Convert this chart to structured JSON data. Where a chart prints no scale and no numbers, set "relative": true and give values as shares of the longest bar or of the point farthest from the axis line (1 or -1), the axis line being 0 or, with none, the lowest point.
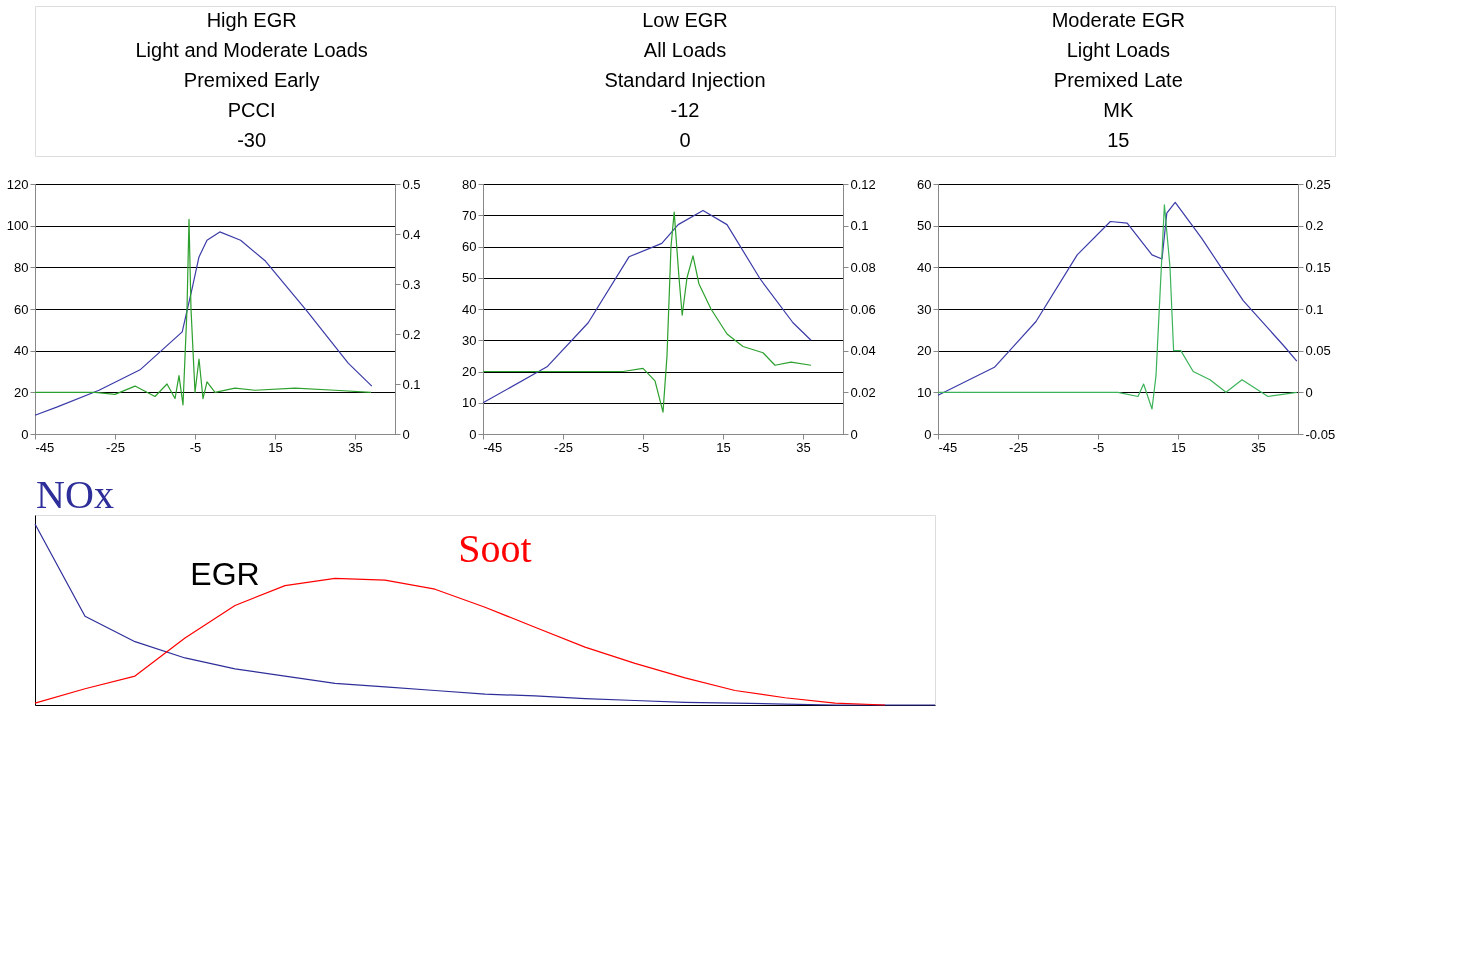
{
  "chart_data": [
    {
      "type": "other",
      "annotations": [
        "High EGR",
        "Low EGR",
        "Moderate EGR",
        "Light and Moderate Loads",
        "All Loads",
        "Light Loads",
        "Premixed Early",
        "Standard Injection",
        "Premixed Late",
        "PCCI",
        "-12",
        "MK",
        "-30",
        "0",
        "15"
      ]
    },
    {
      "type": "line",
      "xlim": [
        -45,
        45
      ],
      "xticks": [
        -45,
        -25,
        -5,
        15,
        35
      ],
      "ylim": [
        0,
        120
      ],
      "yticks": [
        0,
        20,
        40,
        60,
        80,
        100,
        120
      ],
      "y2lim": [
        0,
        0.5
      ],
      "y2ticks": [
        0,
        0.1,
        0.2,
        0.3,
        0.4,
        0.5
      ],
      "grid": "y",
      "series": [
        {
          "color": "#3b3ba8",
          "x": [
            -45,
            -39.4,
            -29,
            -18.6,
            -8.2,
            -5.7,
            -4,
            -2,
            1.2,
            6.4,
            12.6,
            23,
            33.3,
            39.2
          ],
          "values": [
            9,
            13,
            21,
            31,
            49,
            70,
            85,
            93,
            97,
            93,
            83,
            59,
            34,
            23
          ]
        },
        {
          "color": "#2ca02c",
          "x": [
            -45,
            -30,
            -25,
            -20,
            -15,
            -12,
            -10,
            -9,
            -8,
            -7,
            -6.5,
            -6,
            -5,
            -4,
            -3,
            -2,
            0,
            5,
            10,
            20,
            30,
            39
          ],
          "values": [
            20,
            20,
            19,
            23,
            18,
            24,
            17,
            28,
            14,
            60,
            103,
            60,
            20,
            36,
            17,
            25,
            20,
            22,
            21,
            22,
            21,
            20
          ]
        }
      ]
    },
    {
      "type": "line",
      "xlim": [
        -45,
        45
      ],
      "xticks": [
        -45,
        -25,
        -5,
        15,
        35
      ],
      "ylim": [
        0,
        80
      ],
      "yticks": [
        0,
        10,
        20,
        30,
        40,
        50,
        60,
        70,
        80
      ],
      "y2lim": [
        0,
        0.12
      ],
      "y2ticks": [
        0,
        0.02,
        0.04,
        0.06,
        0.08,
        0.1,
        0.12
      ],
      "grid": "y",
      "series": [
        {
          "color": "#3b3ba8",
          "x": [
            -45,
            -29,
            -18.7,
            -8.5,
            -0.3,
            3.8,
            10,
            16,
            24.3,
            32.5,
            37
          ],
          "values": [
            10,
            21.5,
            35.6,
            56.7,
            61,
            67,
            71.5,
            67,
            49.6,
            35.6,
            30
          ]
        },
        {
          "color": "#2ca02c",
          "x": [
            -45,
            -10,
            -5,
            -2,
            0,
            1,
            2,
            2.8,
            4,
            4.8,
            6,
            7.5,
            9,
            12,
            16,
            20,
            25,
            28,
            32,
            37
          ],
          "values": [
            20,
            20,
            21,
            17,
            7,
            25,
            60,
            71,
            50,
            38,
            50,
            57,
            48,
            40,
            32,
            28,
            26,
            22,
            23,
            22
          ]
        }
      ]
    },
    {
      "type": "line",
      "xlim": [
        -45,
        45
      ],
      "xticks": [
        -45,
        -25,
        -5,
        15,
        35
      ],
      "ylim": [
        0,
        60
      ],
      "yticks": [
        0,
        10,
        20,
        30,
        40,
        50,
        60
      ],
      "y2lim": [
        -0.05,
        0.25
      ],
      "y2ticks": [
        -0.05,
        0,
        0.05,
        0.1,
        0.15,
        0.2,
        0.25
      ],
      "grid": "y",
      "series": [
        {
          "color": "#3b3ba8",
          "x": [
            -45,
            -30.9,
            -20.5,
            -10.2,
            -1.9,
            2.3,
            8.5,
            11,
            12.2,
            14.3,
            20.9,
            31.3,
            41.6,
            44.7
          ],
          "values": [
            9.3,
            16,
            27,
            43,
            51,
            50.6,
            43,
            42,
            53,
            55.6,
            47,
            32,
            21,
            17.5
          ]
        },
        {
          "color": "#3cb35a",
          "x": [
            -45,
            0,
            5,
            6.4,
            8.5,
            9.5,
            11.6,
            13,
            13.9,
            15.7,
            18.8,
            23,
            27,
            31,
            37.5,
            44.7
          ],
          "values": [
            10,
            10,
            9,
            12,
            6,
            14,
            55,
            40,
            20,
            20,
            15,
            13,
            10,
            13,
            9,
            10
          ]
        }
      ]
    },
    {
      "type": "line",
      "relative": true,
      "categories": [
        null,
        null,
        null,
        null,
        null,
        null,
        null,
        null,
        null,
        null,
        null,
        null,
        null,
        null,
        null,
        null,
        null,
        null,
        null
      ],
      "annotations": [
        "EGR"
      ],
      "series": [
        {
          "name": "NOx",
          "color": "#2e2e9a",
          "values": [
            1,
            0.49,
            0.35,
            0.26,
            0.2,
            0.16,
            0.12,
            0.1,
            0.08,
            0.06,
            0.05,
            0.035,
            0.025,
            0.015,
            0.01,
            0.005,
            0,
            0,
            0
          ]
        },
        {
          "name": "Soot",
          "color": "#ff0000",
          "values": [
            0.01,
            0.09,
            0.16,
            0.37,
            0.55,
            0.66,
            0.7,
            0.69,
            0.64,
            0.54,
            0.43,
            0.32,
            0.23,
            0.15,
            0.08,
            0.04,
            0.01,
            0,
            null
          ]
        }
      ]
    }
  ]
}
